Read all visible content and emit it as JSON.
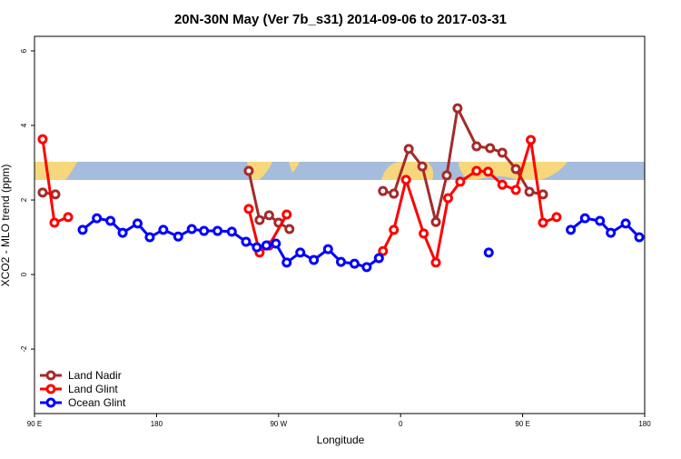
{
  "chart_data": {
    "type": "line",
    "title": "20N-30N May (Ver 7b_s31)   2014-09-06 to 2017-03-31",
    "x_label": "Longitude",
    "y_label": "XCO2 - MLO trend (ppm)",
    "xlim": [
      90,
      540
    ],
    "ylim": [
      -3.73,
      6.39
    ],
    "xticks": [
      {
        "value": 90,
        "label": "90 E"
      },
      {
        "value": 180,
        "label": "180"
      },
      {
        "value": 270,
        "label": "90 W"
      },
      {
        "value": 360,
        "label": "0"
      },
      {
        "value": 450,
        "label": "90 E"
      },
      {
        "value": 540,
        "label": "180"
      }
    ],
    "yticks": [
      -2,
      0,
      2,
      4,
      6
    ],
    "legend": "bottom-left",
    "series": [
      {
        "name": "Land Nadir",
        "color": "#a52a2a",
        "x": [
          96,
          105.4,
          null,
          248,
          256,
          263,
          270,
          278,
          null,
          347,
          355,
          366,
          376,
          386,
          394,
          402,
          416,
          426,
          435,
          445,
          455,
          465
        ],
        "values": [
          2.2,
          2.15,
          null,
          2.78,
          1.46,
          1.59,
          1.39,
          1.22,
          null,
          2.24,
          2.17,
          3.37,
          2.9,
          1.41,
          2.66,
          4.46,
          3.44,
          3.39,
          3.27,
          2.83,
          2.22,
          2.15
        ]
      },
      {
        "name": "Land Glint",
        "color": "#ff0000",
        "x": [
          96,
          104.7,
          114.8,
          null,
          248,
          256,
          263,
          276,
          null,
          347,
          355,
          364,
          377,
          386,
          395,
          404,
          416,
          424.5,
          435,
          445,
          456,
          465,
          475
        ],
        "values": [
          3.63,
          1.39,
          1.54,
          null,
          1.76,
          0.59,
          0.78,
          1.61,
          null,
          0.63,
          1.2,
          2.54,
          1.1,
          0.32,
          2.05,
          2.49,
          2.78,
          2.76,
          2.41,
          2.27,
          3.61,
          1.39,
          1.54
        ]
      },
      {
        "name": "Ocean Glint",
        "color": "#0000ff",
        "x": [
          125.5,
          136,
          146,
          155,
          166,
          175,
          185,
          196,
          206,
          215,
          225,
          235.5,
          246,
          254,
          261,
          268,
          276,
          286,
          296,
          306.5,
          316,
          326,
          335,
          344,
          null,
          425,
          null,
          485.5,
          496,
          507,
          515,
          526,
          536
        ],
        "values": [
          1.2,
          1.51,
          1.44,
          1.12,
          1.37,
          1.0,
          1.2,
          1.02,
          1.22,
          1.17,
          1.17,
          1.15,
          0.88,
          0.73,
          0.78,
          0.83,
          0.32,
          0.59,
          0.39,
          0.68,
          0.34,
          0.29,
          0.2,
          0.44,
          null,
          0.59,
          null,
          1.2,
          1.51,
          1.44,
          1.12,
          1.37,
          1.0
        ]
      }
    ]
  }
}
